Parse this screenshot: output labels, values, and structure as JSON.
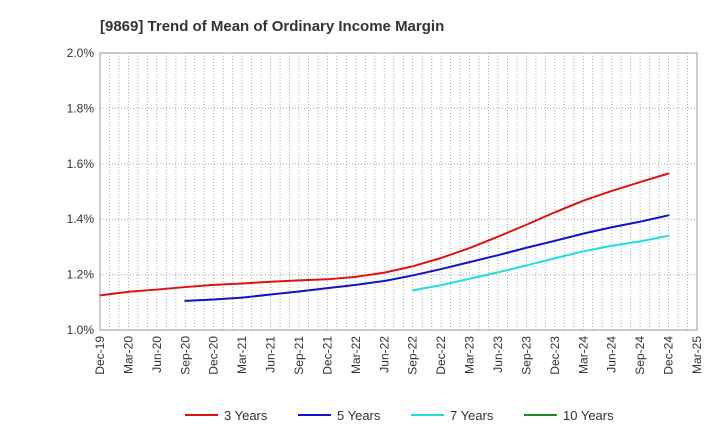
{
  "chart_data": {
    "type": "line",
    "title": "[9869]  Trend of Mean of Ordinary Income Margin",
    "xlabel": "",
    "ylabel": "",
    "ylim": [
      1.0,
      2.0
    ],
    "y_ticks": [
      "1.0%",
      "1.2%",
      "1.4%",
      "1.6%",
      "1.8%",
      "2.0%"
    ],
    "y_tick_values": [
      1.0,
      1.2,
      1.4,
      1.6,
      1.8,
      2.0
    ],
    "x_tick_labels": [
      "Dec-19",
      "Mar-20",
      "Jun-20",
      "Sep-20",
      "Dec-20",
      "Mar-21",
      "Jun-21",
      "Sep-21",
      "Dec-21",
      "Mar-22",
      "Jun-22",
      "Sep-22",
      "Dec-22",
      "Mar-23",
      "Jun-23",
      "Sep-23",
      "Dec-23",
      "Mar-24",
      "Jun-24",
      "Sep-24",
      "Dec-24",
      "Mar-25"
    ],
    "grid": true,
    "legend_position": "bottom",
    "series": [
      {
        "name": "3 Years",
        "color": "#dd1111",
        "points": [
          [
            "Dec-19",
            1.125
          ],
          [
            "Mar-20",
            1.138
          ],
          [
            "Jun-20",
            1.146
          ],
          [
            "Sep-20",
            1.155
          ],
          [
            "Dec-20",
            1.163
          ],
          [
            "Mar-21",
            1.168
          ],
          [
            "Jun-21",
            1.174
          ],
          [
            "Sep-21",
            1.179
          ],
          [
            "Dec-21",
            1.183
          ],
          [
            "Mar-22",
            1.192
          ],
          [
            "Jun-22",
            1.207
          ],
          [
            "Sep-22",
            1.23
          ],
          [
            "Dec-22",
            1.26
          ],
          [
            "Mar-23",
            1.296
          ],
          [
            "Jun-23",
            1.337
          ],
          [
            "Sep-23",
            1.38
          ],
          [
            "Dec-23",
            1.425
          ],
          [
            "Mar-24",
            1.467
          ],
          [
            "Jun-24",
            1.502
          ],
          [
            "Sep-24",
            1.534
          ],
          [
            "Dec-24",
            1.565
          ]
        ]
      },
      {
        "name": "5 Years",
        "color": "#1111cc",
        "points": [
          [
            "Sep-20",
            1.105
          ],
          [
            "Dec-20",
            1.11
          ],
          [
            "Mar-21",
            1.117
          ],
          [
            "Jun-21",
            1.128
          ],
          [
            "Sep-21",
            1.139
          ],
          [
            "Dec-21",
            1.151
          ],
          [
            "Mar-22",
            1.163
          ],
          [
            "Jun-22",
            1.177
          ],
          [
            "Sep-22",
            1.197
          ],
          [
            "Dec-22",
            1.22
          ],
          [
            "Mar-23",
            1.245
          ],
          [
            "Jun-23",
            1.27
          ],
          [
            "Sep-23",
            1.297
          ],
          [
            "Dec-23",
            1.322
          ],
          [
            "Mar-24",
            1.348
          ],
          [
            "Jun-24",
            1.371
          ],
          [
            "Sep-24",
            1.391
          ],
          [
            "Dec-24",
            1.414
          ]
        ]
      },
      {
        "name": "7 Years",
        "color": "#22dddd",
        "points": [
          [
            "Sep-22",
            1.143
          ],
          [
            "Dec-22",
            1.162
          ],
          [
            "Mar-23",
            1.185
          ],
          [
            "Jun-23",
            1.208
          ],
          [
            "Sep-23",
            1.233
          ],
          [
            "Dec-23",
            1.259
          ],
          [
            "Mar-24",
            1.284
          ],
          [
            "Jun-24",
            1.304
          ],
          [
            "Sep-24",
            1.32
          ],
          [
            "Dec-24",
            1.34
          ]
        ]
      },
      {
        "name": "10 Years",
        "color": "#228822",
        "points": []
      }
    ]
  }
}
